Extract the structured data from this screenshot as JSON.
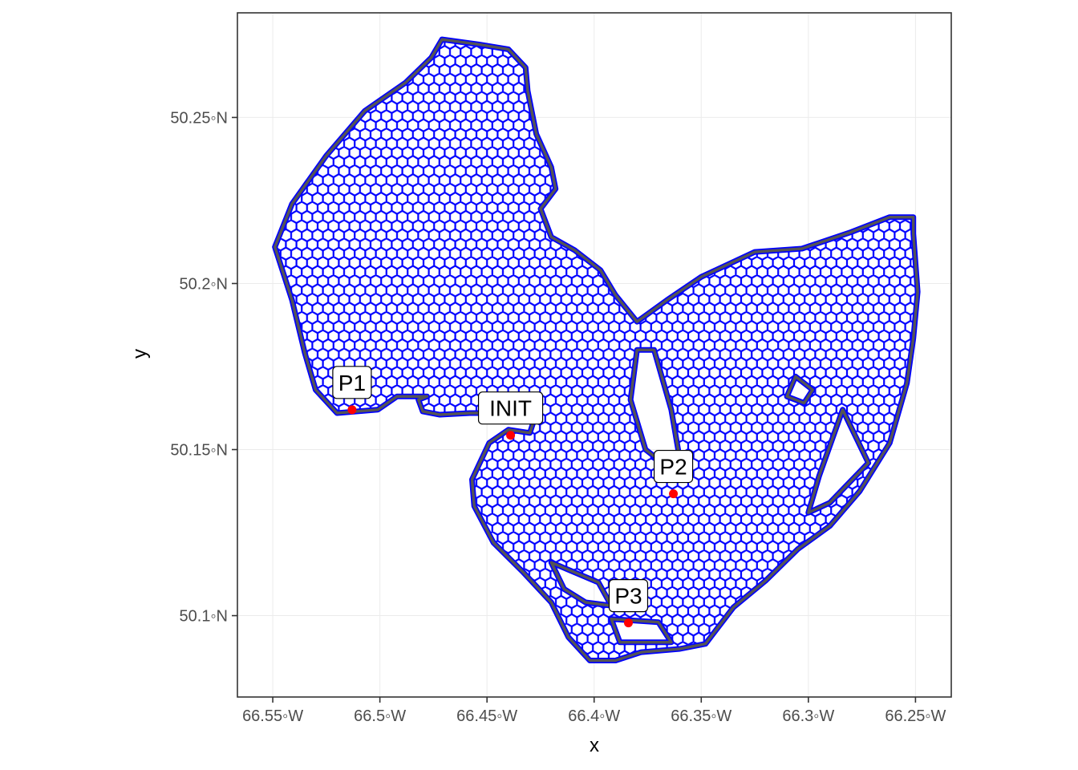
{
  "chart_data": {
    "type": "scatter",
    "title": "",
    "xlabel": "x",
    "ylabel": "y",
    "xlim": [
      -66.5665,
      -66.2333
    ],
    "ylim": [
      50.0755,
      50.2815
    ],
    "x_ticks": [
      {
        "value": -66.55,
        "label": "66.55◦W"
      },
      {
        "value": -66.5,
        "label": "66.5◦W"
      },
      {
        "value": -66.45,
        "label": "66.45◦W"
      },
      {
        "value": -66.4,
        "label": "66.4◦W"
      },
      {
        "value": -66.35,
        "label": "66.35◦W"
      },
      {
        "value": -66.3,
        "label": "66.3◦W"
      },
      {
        "value": -66.25,
        "label": "66.25◦W"
      }
    ],
    "y_ticks": [
      {
        "value": 50.1,
        "label": "50.1◦N"
      },
      {
        "value": 50.15,
        "label": "50.15◦N"
      },
      {
        "value": 50.2,
        "label": "50.2◦N"
      },
      {
        "value": 50.25,
        "label": "50.25◦N"
      }
    ],
    "grid": true,
    "hex_grid_color": "#0000ff",
    "outline_color": "#555555",
    "point_color": "#ff0000",
    "region": {
      "outer": [
        [
          -66.471,
          50.2735
        ],
        [
          -66.454,
          50.272
        ],
        [
          -66.44,
          50.2705
        ],
        [
          -66.432,
          50.265
        ],
        [
          -66.431,
          50.258
        ],
        [
          -66.427,
          50.245
        ],
        [
          -66.42,
          50.235
        ],
        [
          -66.418,
          50.2285
        ],
        [
          -66.425,
          50.2225
        ],
        [
          -66.42,
          50.214
        ],
        [
          -66.409,
          50.21
        ],
        [
          -66.397,
          50.204
        ],
        [
          -66.39,
          50.1965
        ],
        [
          -66.38,
          50.1885
        ],
        [
          -66.366,
          50.195
        ],
        [
          -66.35,
          50.202
        ],
        [
          -66.325,
          50.2095
        ],
        [
          -66.303,
          50.2105
        ],
        [
          -66.28,
          50.2155
        ],
        [
          -66.262,
          50.22
        ],
        [
          -66.251,
          50.22
        ],
        [
          -66.251,
          50.215
        ],
        [
          -66.249,
          50.1975
        ],
        [
          -66.251,
          50.1835
        ],
        [
          -66.254,
          50.17
        ],
        [
          -66.262,
          50.152
        ],
        [
          -66.276,
          50.1375
        ],
        [
          -66.29,
          50.127
        ],
        [
          -66.305,
          50.12
        ],
        [
          -66.32,
          50.1105
        ],
        [
          -66.335,
          50.1025
        ],
        [
          -66.348,
          50.0915
        ],
        [
          -66.36,
          50.09
        ],
        [
          -66.378,
          50.089
        ],
        [
          -66.39,
          50.0865
        ],
        [
          -66.402,
          50.0865
        ],
        [
          -66.412,
          50.0935
        ],
        [
          -66.42,
          50.104
        ],
        [
          -66.433,
          50.113
        ],
        [
          -66.447,
          50.122
        ],
        [
          -66.456,
          50.133
        ],
        [
          -66.457,
          50.141
        ],
        [
          -66.449,
          50.152
        ],
        [
          -66.44,
          50.156
        ],
        [
          -66.43,
          50.155
        ],
        [
          -66.427,
          50.161
        ],
        [
          -66.458,
          50.161
        ],
        [
          -66.472,
          50.1605
        ],
        [
          -66.48,
          50.1615
        ],
        [
          -66.482,
          50.165
        ],
        [
          -66.478,
          50.166
        ],
        [
          -66.492,
          50.166
        ],
        [
          -66.501,
          50.162
        ],
        [
          -66.52,
          50.161
        ],
        [
          -66.53,
          50.168
        ],
        [
          -66.535,
          50.179
        ],
        [
          -66.541,
          50.195
        ],
        [
          -66.549,
          50.211
        ],
        [
          -66.541,
          50.224
        ],
        [
          -66.525,
          50.2385
        ],
        [
          -66.507,
          50.252
        ],
        [
          -66.488,
          50.2605
        ],
        [
          -66.476,
          50.268
        ]
      ],
      "holes": [
        [
          [
            -66.38,
            50.18
          ],
          [
            -66.372,
            50.18
          ],
          [
            -66.364,
            50.162
          ],
          [
            -66.36,
            50.147
          ],
          [
            -66.366,
            50.145
          ],
          [
            -66.376,
            50.15
          ],
          [
            -66.383,
            50.165
          ]
        ],
        [
          [
            -66.306,
            50.172
          ],
          [
            -66.298,
            50.168
          ],
          [
            -66.302,
            50.164
          ],
          [
            -66.31,
            50.166
          ]
        ],
        [
          [
            -66.284,
            50.162
          ],
          [
            -66.272,
            50.146
          ],
          [
            -66.29,
            50.134
          ],
          [
            -66.3,
            50.131
          ],
          [
            -66.295,
            50.142
          ]
        ],
        [
          [
            -66.42,
            50.116
          ],
          [
            -66.398,
            50.11
          ],
          [
            -66.392,
            50.103
          ],
          [
            -66.404,
            50.104
          ],
          [
            -66.414,
            50.108
          ]
        ],
        [
          [
            -66.392,
            50.099
          ],
          [
            -66.37,
            50.098
          ],
          [
            -66.364,
            50.092
          ],
          [
            -66.388,
            50.092
          ]
        ]
      ]
    },
    "points": [
      {
        "label": "P1",
        "x": -66.513,
        "y": 50.162
      },
      {
        "label": "INIT",
        "x": -66.439,
        "y": 50.1543
      },
      {
        "label": "P2",
        "x": -66.363,
        "y": 50.1367
      },
      {
        "label": "P3",
        "x": -66.384,
        "y": 50.0978
      }
    ]
  }
}
